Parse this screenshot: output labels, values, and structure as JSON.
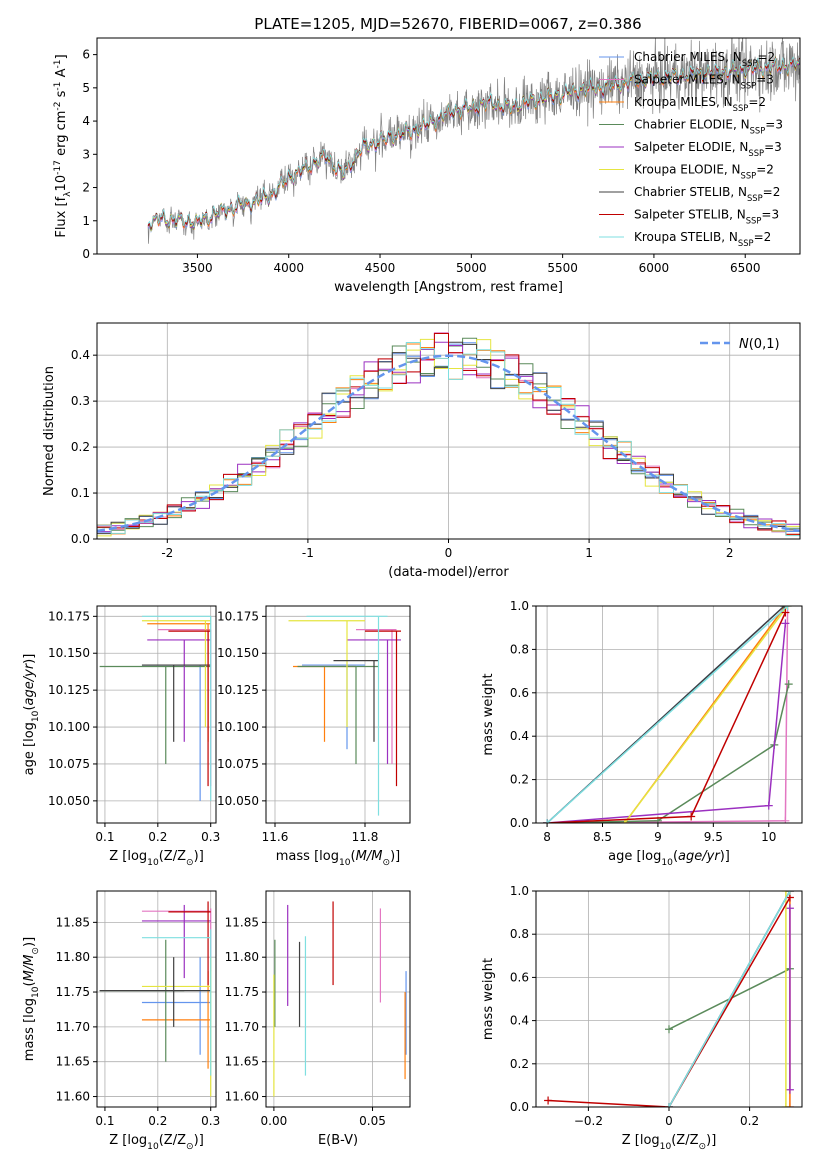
{
  "chart_data": [
    {
      "type": "line",
      "title": "PLATE=1205, MJD=52670, FIBERID=0067, z=0.386",
      "xlabel": "wavelength [Angstrom, rest frame]",
      "ylabel": "Flux [f$_\\lambda$10$^{-17}$ erg cm$^{-2}$ s$^{-1}$ A$^{-1}$]",
      "xlim": [
        2950,
        6800
      ],
      "ylim": [
        0,
        6.5
      ],
      "xticks": [
        3500,
        4000,
        4500,
        5000,
        5500,
        6000,
        6500
      ],
      "yticks": [
        0,
        1,
        2,
        3,
        4,
        5,
        6
      ],
      "observed_color": "#808080",
      "model_knots": [
        [
          3230,
          0.93
        ],
        [
          3300,
          1.05
        ],
        [
          3400,
          1.0
        ],
        [
          3500,
          0.95
        ],
        [
          3600,
          1.2
        ],
        [
          3700,
          1.4
        ],
        [
          3800,
          1.55
        ],
        [
          3900,
          1.75
        ],
        [
          4000,
          2.3
        ],
        [
          4100,
          2.6
        ],
        [
          4200,
          2.95
        ],
        [
          4300,
          2.4
        ],
        [
          4400,
          3.2
        ],
        [
          4500,
          3.4
        ],
        [
          4600,
          3.6
        ],
        [
          4700,
          3.75
        ],
        [
          4800,
          4.0
        ],
        [
          4900,
          4.3
        ],
        [
          5000,
          4.4
        ],
        [
          5100,
          4.55
        ],
        [
          5200,
          4.4
        ],
        [
          5300,
          4.55
        ],
        [
          5400,
          4.7
        ],
        [
          5500,
          4.8
        ],
        [
          5600,
          4.95
        ],
        [
          5700,
          5.0
        ],
        [
          5800,
          5.1
        ],
        [
          5900,
          5.2
        ],
        [
          6000,
          5.3
        ],
        [
          6100,
          5.35
        ],
        [
          6200,
          5.4
        ],
        [
          6300,
          5.45
        ],
        [
          6400,
          5.5
        ],
        [
          6500,
          5.55
        ],
        [
          6600,
          5.6
        ],
        [
          6700,
          5.65
        ],
        [
          6800,
          5.7
        ]
      ],
      "series": [
        {
          "name": "Chabrier MILES, N$_{SSP}$=2",
          "color": "#6495ed"
        },
        {
          "name": "Salpeter MILES, N$_{SSP}$=3",
          "color": "#e377c2"
        },
        {
          "name": "Kroupa MILES, N$_{SSP}$=2",
          "color": "#ff7f0e"
        },
        {
          "name": "Chabrier ELODIE, N$_{SSP}$=3",
          "color": "#5a8a5a"
        },
        {
          "name": "Salpeter ELODIE, N$_{SSP}$=3",
          "color": "#9b30c0"
        },
        {
          "name": "Kroupa ELODIE, N$_{SSP}$=2",
          "color": "#e5e540"
        },
        {
          "name": "Chabrier STELIB, N$_{SSP}$=2",
          "color": "#404040"
        },
        {
          "name": "Salpeter STELIB, N$_{SSP}$=3",
          "color": "#c00000"
        },
        {
          "name": "Kroupa STELIB, N$_{SSP}$=2",
          "color": "#7fdfe0"
        }
      ]
    },
    {
      "type": "line",
      "xlabel": "(data-model)/error",
      "ylabel": "Normed distribution",
      "xlim": [
        -2.5,
        2.5
      ],
      "ylim": [
        0,
        0.47
      ],
      "xticks": [
        -2,
        -1,
        0,
        1,
        2
      ],
      "yticks": [
        0.0,
        0.1,
        0.2,
        0.3,
        0.4
      ],
      "reference": {
        "name": "$\\mathcal{N}(0,1)$",
        "color": "#6495ed",
        "mean": 0,
        "sigma": 1
      },
      "bin_width": 0.1,
      "histogram_colors": [
        "#6495ed",
        "#e377c2",
        "#ff7f0e",
        "#5a8a5a",
        "#9b30c0",
        "#e5e540",
        "#404040",
        "#c00000",
        "#7fdfe0"
      ]
    },
    {
      "type": "scatter",
      "xlabel": "Z [log$_{10}$(Z/Z$_\\odot$)]",
      "ylabel": "age  [log$_{10}$($age/yr$)]",
      "xlim": [
        0.085,
        0.31
      ],
      "ylim": [
        10.035,
        10.182
      ],
      "xticks": [
        0.1,
        0.2,
        0.3
      ],
      "xtick_labels": [
        "0.1",
        "0.2",
        "0.3"
      ],
      "yticks": [
        10.05,
        10.075,
        10.1,
        10.125,
        10.15,
        10.175
      ],
      "ytick_labels": [
        "10.050",
        "10.075",
        "10.100",
        "10.125",
        "10.150",
        "10.175"
      ],
      "points": [
        {
          "color": "#6495ed",
          "x": 0.28,
          "x_lo": 0.17,
          "x_hi": 0.3,
          "y": 10.142,
          "y_lo": 10.05,
          "y_hi": 10.142
        },
        {
          "color": "#e377c2",
          "x": 0.3,
          "x_lo": 0.2,
          "x_hi": 0.3,
          "y": 10.166,
          "y_lo": 10.06,
          "y_hi": 10.166
        },
        {
          "color": "#ff7f0e",
          "x": 0.295,
          "x_lo": 0.18,
          "x_hi": 0.3,
          "y": 10.17,
          "y_lo": 10.09,
          "y_hi": 10.17
        },
        {
          "color": "#5a8a5a",
          "x": 0.215,
          "x_lo": 0.09,
          "x_hi": 0.3,
          "y": 10.141,
          "y_lo": 10.075,
          "y_hi": 10.141
        },
        {
          "color": "#9b30c0",
          "x": 0.25,
          "x_lo": 0.18,
          "x_hi": 0.3,
          "y": 10.159,
          "y_lo": 10.09,
          "y_hi": 10.159
        },
        {
          "color": "#e5e540",
          "x": 0.29,
          "x_lo": 0.17,
          "x_hi": 0.3,
          "y": 10.172,
          "y_lo": 10.1,
          "y_hi": 10.172
        },
        {
          "color": "#404040",
          "x": 0.23,
          "x_lo": 0.17,
          "x_hi": 0.3,
          "y": 10.142,
          "y_lo": 10.09,
          "y_hi": 10.142
        },
        {
          "color": "#c00000",
          "x": 0.295,
          "x_lo": 0.22,
          "x_hi": 0.3,
          "y": 10.165,
          "y_lo": 10.06,
          "y_hi": 10.165
        },
        {
          "color": "#7fdfe0",
          "x": 0.3,
          "x_lo": 0.17,
          "x_hi": 0.3,
          "y": 10.175,
          "y_lo": 10.05,
          "y_hi": 10.175
        }
      ]
    },
    {
      "type": "scatter",
      "xlabel": "mass [log$_{10}$($M/M_\\odot$)]",
      "xlim": [
        11.58,
        11.9
      ],
      "ylim": [
        10.035,
        10.182
      ],
      "xticks": [
        11.6,
        11.8
      ],
      "xtick_labels": [
        "11.6",
        "11.8"
      ],
      "yticks": [
        10.05,
        10.075,
        10.1,
        10.125,
        10.15,
        10.175
      ],
      "ytick_labels": [
        "10.050",
        "10.075",
        "10.100",
        "10.125",
        "10.150",
        "10.175"
      ],
      "points": [
        {
          "color": "#6495ed",
          "x": 11.76,
          "x_lo": 11.66,
          "x_hi": 11.8,
          "y": 10.142,
          "y_lo": 10.085,
          "y_hi": 10.142
        },
        {
          "color": "#e377c2",
          "x": 11.86,
          "x_lo": 11.78,
          "x_hi": 11.87,
          "y": 10.166,
          "y_lo": 10.075,
          "y_hi": 10.166
        },
        {
          "color": "#ff7f0e",
          "x": 11.71,
          "x_lo": 11.64,
          "x_hi": 11.78,
          "y": 10.141,
          "y_lo": 10.09,
          "y_hi": 10.141
        },
        {
          "color": "#5a8a5a",
          "x": 11.78,
          "x_lo": 11.65,
          "x_hi": 11.83,
          "y": 10.141,
          "y_lo": 10.075,
          "y_hi": 10.141
        },
        {
          "color": "#9b30c0",
          "x": 11.85,
          "x_lo": 11.76,
          "x_hi": 11.88,
          "y": 10.159,
          "y_lo": 10.075,
          "y_hi": 10.159
        },
        {
          "color": "#e5e540",
          "x": 11.76,
          "x_lo": 11.63,
          "x_hi": 11.8,
          "y": 10.172,
          "y_lo": 10.1,
          "y_hi": 10.172
        },
        {
          "color": "#404040",
          "x": 11.82,
          "x_lo": 11.73,
          "x_hi": 11.83,
          "y": 10.145,
          "y_lo": 10.09,
          "y_hi": 10.145
        },
        {
          "color": "#c00000",
          "x": 11.87,
          "x_lo": 11.8,
          "x_hi": 11.88,
          "y": 10.165,
          "y_lo": 10.06,
          "y_hi": 10.165
        },
        {
          "color": "#7fdfe0",
          "x": 11.83,
          "x_lo": 11.67,
          "x_hi": 11.85,
          "y": 10.175,
          "y_lo": 10.04,
          "y_hi": 10.175
        }
      ]
    },
    {
      "type": "line",
      "xlabel": "age  [log$_{10}$($age/yr$)]",
      "ylabel": "mass weight",
      "xlim": [
        7.9,
        10.3
      ],
      "ylim": [
        0,
        1.0
      ],
      "xticks": [
        8.0,
        8.5,
        9.0,
        9.5,
        10.0
      ],
      "yticks": [
        0.0,
        0.2,
        0.4,
        0.6,
        0.8,
        1.0
      ],
      "series": [
        {
          "color": "#6495ed",
          "x": [
            8.0,
            10.14
          ],
          "y": [
            0.0,
            1.0
          ]
        },
        {
          "color": "#e377c2",
          "x": [
            8.0,
            10.15,
            10.17
          ],
          "y": [
            0.0,
            0.01,
            1.0
          ]
        },
        {
          "color": "#ff7f0e",
          "x": [
            8.7,
            10.15
          ],
          "y": [
            0.0,
            1.0
          ]
        },
        {
          "color": "#5a8a5a",
          "x": [
            8.0,
            9.0,
            10.05,
            10.18
          ],
          "y": [
            0.0,
            0.01,
            0.36,
            0.64
          ]
        },
        {
          "color": "#9b30c0",
          "x": [
            8.0,
            10.0,
            10.15
          ],
          "y": [
            0.0,
            0.08,
            0.92
          ]
        },
        {
          "color": "#e5e540",
          "x": [
            8.7,
            10.17
          ],
          "y": [
            0.0,
            1.0
          ]
        },
        {
          "color": "#404040",
          "x": [
            8.0,
            10.14
          ],
          "y": [
            0.0,
            1.0
          ]
        },
        {
          "color": "#c00000",
          "x": [
            8.0,
            9.3,
            10.15
          ],
          "y": [
            0.0,
            0.03,
            0.97
          ]
        },
        {
          "color": "#7fdfe0",
          "x": [
            8.0,
            10.17
          ],
          "y": [
            0.0,
            1.0
          ]
        }
      ]
    },
    {
      "type": "scatter",
      "xlabel": "Z [log$_{10}$(Z/Z$_\\odot$)]",
      "ylabel": "mass [log$_{10}$($M/M_\\odot$)]",
      "xlim": [
        0.085,
        0.31
      ],
      "ylim": [
        11.585,
        11.895
      ],
      "xticks": [
        0.1,
        0.2,
        0.3
      ],
      "xtick_labels": [
        "0.1",
        "0.2",
        "0.3"
      ],
      "yticks": [
        11.6,
        11.65,
        11.7,
        11.75,
        11.8,
        11.85
      ],
      "ytick_labels": [
        "11.60",
        "11.65",
        "11.70",
        "11.75",
        "11.80",
        "11.85"
      ],
      "points": [
        {
          "color": "#6495ed",
          "x": 0.28,
          "x_lo": 0.17,
          "x_hi": 0.3,
          "y": 11.735,
          "y_lo": 11.66,
          "y_hi": 11.8
        },
        {
          "color": "#e377c2",
          "x": 0.3,
          "x_lo": 0.17,
          "x_hi": 0.3,
          "y": 11.866,
          "y_lo": 11.78,
          "y_hi": 11.87
        },
        {
          "color": "#ff7f0e",
          "x": 0.295,
          "x_lo": 0.17,
          "x_hi": 0.3,
          "y": 11.71,
          "y_lo": 11.64,
          "y_hi": 11.78
        },
        {
          "color": "#5a8a5a",
          "x": 0.215,
          "x_lo": 0.09,
          "x_hi": 0.25,
          "y": 11.752,
          "y_lo": 11.65,
          "y_hi": 11.825
        },
        {
          "color": "#9b30c0",
          "x": 0.25,
          "x_lo": 0.17,
          "x_hi": 0.3,
          "y": 11.852,
          "y_lo": 11.77,
          "y_hi": 11.875
        },
        {
          "color": "#e5e540",
          "x": 0.3,
          "x_lo": 0.17,
          "x_hi": 0.3,
          "y": 11.758,
          "y_lo": 11.6,
          "y_hi": 11.8
        },
        {
          "color": "#404040",
          "x": 0.23,
          "x_lo": 0.09,
          "x_hi": 0.3,
          "y": 11.752,
          "y_lo": 11.7,
          "y_hi": 11.8
        },
        {
          "color": "#c00000",
          "x": 0.295,
          "x_lo": 0.22,
          "x_hi": 0.3,
          "y": 11.865,
          "y_lo": 11.76,
          "y_hi": 11.88
        },
        {
          "color": "#7fdfe0",
          "x": 0.3,
          "x_lo": 0.17,
          "x_hi": 0.3,
          "y": 11.828,
          "y_lo": 11.63,
          "y_hi": 11.84
        }
      ]
    },
    {
      "type": "scatter",
      "xlabel": "E(B-V)",
      "xlim": [
        -0.004,
        0.069
      ],
      "ylim": [
        11.585,
        11.895
      ],
      "xticks": [
        0.0,
        0.05
      ],
      "xtick_labels": [
        "0.00",
        "0.05"
      ],
      "yticks": [
        11.6,
        11.65,
        11.7,
        11.75,
        11.8,
        11.85
      ],
      "ytick_labels": [
        "11.60",
        "11.65",
        "11.70",
        "11.75",
        "11.80",
        "11.85"
      ],
      "points": [
        {
          "color": "#6495ed",
          "x": 0.067,
          "y": 11.75,
          "y_lo": 11.66,
          "y_hi": 11.78
        },
        {
          "color": "#e377c2",
          "x": 0.054,
          "y": 11.8,
          "y_lo": 11.735,
          "y_hi": 11.87
        },
        {
          "color": "#ff7f0e",
          "x": 0.0665,
          "y": 11.7,
          "y_lo": 11.625,
          "y_hi": 11.75
        },
        {
          "color": "#5a8a5a",
          "x": 0.0005,
          "y": 11.78,
          "y_lo": 11.7,
          "y_hi": 11.825
        },
        {
          "color": "#9b30c0",
          "x": 0.007,
          "y": 11.8,
          "y_lo": 11.73,
          "y_hi": 11.875
        },
        {
          "color": "#e5e540",
          "x": 0.0,
          "y": 11.7,
          "y_lo": 11.6,
          "y_hi": 11.775
        },
        {
          "color": "#404040",
          "x": 0.013,
          "y": 11.76,
          "y_lo": 11.7,
          "y_hi": 11.822
        },
        {
          "color": "#c00000",
          "x": 0.03,
          "y": 11.82,
          "y_lo": 11.76,
          "y_hi": 11.88
        },
        {
          "color": "#7fdfe0",
          "x": 0.016,
          "y": 11.74,
          "y_lo": 11.63,
          "y_hi": 11.83
        }
      ]
    },
    {
      "type": "line",
      "xlabel": "Z [log$_{10}$(Z/Z$_\\odot$)]",
      "ylabel": "mass weight",
      "xlim": [
        -0.33,
        0.33
      ],
      "ylim": [
        0,
        1.0
      ],
      "xticks": [
        -0.2,
        0.0,
        0.2
      ],
      "yticks": [
        0.0,
        0.2,
        0.4,
        0.6,
        0.8,
        1.0
      ],
      "series": [
        {
          "color": "#6495ed",
          "x": [
            0.0,
            0.3
          ],
          "y": [
            0.0,
            1.0
          ]
        },
        {
          "color": "#e377c2",
          "x": [
            0.3,
            0.3
          ],
          "y": [
            0.0,
            1.0
          ]
        },
        {
          "color": "#ff7f0e",
          "x": [
            0.3,
            0.3
          ],
          "y": [
            0.0,
            1.0
          ]
        },
        {
          "color": "#5a8a5a",
          "x": [
            0.0,
            0.3
          ],
          "y": [
            0.36,
            0.64
          ]
        },
        {
          "color": "#9b30c0",
          "x": [
            0.3,
            0.3
          ],
          "y": [
            0.08,
            0.92
          ]
        },
        {
          "color": "#e5e540",
          "x": [
            0.29,
            0.29
          ],
          "y": [
            0.0,
            1.0
          ]
        },
        {
          "color": "#404040",
          "x": [
            0.0,
            0.3
          ],
          "y": [
            0.0,
            1.0
          ]
        },
        {
          "color": "#c00000",
          "x": [
            -0.3,
            0.0,
            0.3
          ],
          "y": [
            0.03,
            0.0,
            0.97
          ]
        },
        {
          "color": "#7fdfe0",
          "x": [
            0.0,
            0.3
          ],
          "y": [
            0.0,
            1.0
          ]
        }
      ]
    }
  ]
}
